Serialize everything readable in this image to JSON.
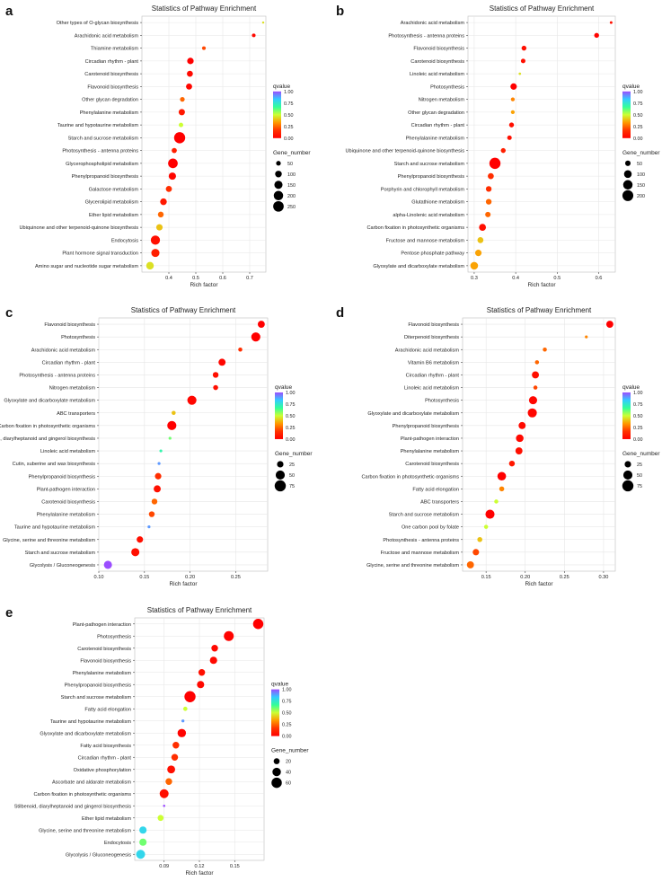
{
  "colors": {
    "qvalue_scale": [
      "#9b4dff",
      "#33ccff",
      "#33ff99",
      "#ccff33",
      "#ff9900",
      "#ff3300",
      "#ff0000"
    ]
  },
  "chart_data": [
    {
      "panel": "a",
      "type": "scatter",
      "title": "Statistics of Pathway Enrichment",
      "xlabel": "Rich factor",
      "xlim": [
        0.3,
        0.76
      ],
      "xticks": [
        0.4,
        0.5,
        0.6,
        0.7
      ],
      "xtick_labels": [
        "0.4",
        "0.5",
        "0.6",
        "0.7"
      ],
      "categories": [
        "Other types of O-glycan biosynthesis",
        "Arachidonic acid metabolism",
        "Thiamine metabolism",
        "Circadian rhythm - plant",
        "Carotenoid biosynthesis",
        "Flavonoid biosynthesis",
        "Other glycan degradation",
        "Phenylalanine metabolism",
        "Taurine and hypotaurine metabolism",
        "Starch and sucrose metabolism",
        "Photosynthesis - antenna proteins",
        "Glycerophospholipid metabolism",
        "Phenylpropanoid biosynthesis",
        "Galactose metabolism",
        "Glycerolipid metabolism",
        "Ether lipid metabolism",
        "Ubiquinone and other terpenoid-quinone biosynthesis",
        "Endocytosis",
        "Plant hormone signal transduction",
        "Amino sugar and nucleotide sugar metabolism"
      ],
      "x": [
        0.75,
        0.715,
        0.53,
        0.48,
        0.478,
        0.475,
        0.45,
        0.448,
        0.445,
        0.44,
        0.42,
        0.415,
        0.413,
        0.4,
        0.38,
        0.37,
        0.365,
        0.35,
        0.35,
        0.33
      ],
      "gene_number": [
        8,
        30,
        30,
        95,
        80,
        85,
        50,
        90,
        45,
        280,
        60,
        210,
        120,
        85,
        100,
        75,
        90,
        190,
        150,
        130
      ],
      "qvalue": [
        0.45,
        0.03,
        0.2,
        0.0,
        0.03,
        0.02,
        0.25,
        0.08,
        0.5,
        0.0,
        0.1,
        0.0,
        0.02,
        0.15,
        0.08,
        0.25,
        0.4,
        0.05,
        0.1,
        0.45
      ],
      "qvalue_legend": {
        "title": "qvalue",
        "ticks": [
          "1.00",
          "0.75",
          "0.50",
          "0.25",
          "0.00"
        ]
      },
      "size_legend": {
        "title": "Gene_number",
        "values": [
          50,
          100,
          150,
          200,
          250
        ],
        "labels": [
          "50",
          "100",
          "150",
          "200",
          "250"
        ],
        "max": 280
      }
    },
    {
      "panel": "b",
      "type": "scatter",
      "title": "Statistics of Pathway Enrichment",
      "xlabel": "Rich factor",
      "xlim": [
        0.285,
        0.64
      ],
      "xticks": [
        0.3,
        0.4,
        0.5,
        0.6
      ],
      "xtick_labels": [
        "0.3",
        "0.4",
        "0.5",
        "0.6"
      ],
      "categories": [
        "Arachidonic acid metabolism",
        "Photosynthesis - antenna proteins",
        "Flavonoid biosynthesis",
        "Carotenoid biosynthesis",
        "Linoleic acid metabolism",
        "Photosynthesis",
        "Nitrogen metabolism",
        "Other glycan degradation",
        "Circadian rhythm - plant",
        "Phenylalanine metabolism",
        "Ubiquinone and other terpenoid-quinone biosynthesis",
        "Starch and sucrose metabolism",
        "Phenylpropanoid biosynthesis",
        "Porphyrin and chlorophyll metabolism",
        "Glutathione metabolism",
        "alpha-Linolenic acid metabolism",
        "Carbon fixation in photosynthetic organisms",
        "Fructose and mannose metabolism",
        "Pentose phosphate pathway",
        "Glyoxylate and dicarboxylate metabolism"
      ],
      "x": [
        0.63,
        0.595,
        0.42,
        0.418,
        0.41,
        0.395,
        0.393,
        0.393,
        0.39,
        0.385,
        0.37,
        0.35,
        0.34,
        0.335,
        0.335,
        0.333,
        0.32,
        0.315,
        0.31,
        0.3
      ],
      "gene_number": [
        12,
        40,
        40,
        35,
        10,
        70,
        25,
        25,
        40,
        35,
        40,
        210,
        60,
        55,
        55,
        50,
        80,
        60,
        70,
        100
      ],
      "qvalue": [
        0.05,
        0.01,
        0.05,
        0.05,
        0.45,
        0.0,
        0.3,
        0.35,
        0.05,
        0.05,
        0.1,
        0.0,
        0.15,
        0.15,
        0.25,
        0.25,
        0.05,
        0.4,
        0.35,
        0.35
      ],
      "qvalue_legend": {
        "title": "qvalue",
        "ticks": [
          "1.00",
          "0.75",
          "0.50",
          "0.25",
          "0.00"
        ]
      },
      "size_legend": {
        "title": "Gene_number",
        "values": [
          50,
          100,
          150,
          200
        ],
        "labels": [
          "50",
          "100",
          "150",
          "200"
        ],
        "max": 210
      }
    },
    {
      "panel": "c",
      "type": "scatter",
      "title": "Statistics of Pathway Enrichment",
      "xlabel": "Rich factor",
      "xlim": [
        0.1,
        0.285
      ],
      "xticks": [
        0.1,
        0.15,
        0.2,
        0.25
      ],
      "xtick_labels": [
        "0.10",
        "0.15",
        "0.20",
        "0.25"
      ],
      "categories": [
        "Flavonoid biosynthesis",
        "Photosynthesis",
        "Arachidonic acid metabolism",
        "Circadian rhythm - plant",
        "Photosynthesis - antenna proteins",
        "Nitrogen metabolism",
        "Glyoxylate and dicarboxylate metabolism",
        "ABC transporters",
        "Carbon fixation in photosynthetic organisms",
        "Stilbenoid, diarylheptanoid and gingerol biosynthesis",
        "Linoleic acid metabolism",
        "Cutin, suberine and wax biosynthesis",
        "Phenylpropanoid biosynthesis",
        "Plant-pathogen interaction",
        "Carotenoid biosynthesis",
        "Phenylalanine metabolism",
        "Taurine and hypotaurine metabolism",
        "Glycine, serine and threonine metabolism",
        "Starch and sucrose metabolism",
        "Glycolysis / Gluconeogenesis"
      ],
      "x": [
        0.278,
        0.272,
        0.255,
        0.235,
        0.228,
        0.228,
        0.202,
        0.182,
        0.18,
        0.178,
        0.168,
        0.166,
        0.165,
        0.164,
        0.161,
        0.158,
        0.155,
        0.145,
        0.14,
        0.11
      ],
      "gene_number": [
        30,
        50,
        10,
        30,
        20,
        15,
        50,
        10,
        50,
        5,
        5,
        5,
        25,
        30,
        20,
        20,
        5,
        25,
        40,
        40
      ],
      "qvalue": [
        0.0,
        0.0,
        0.15,
        0.02,
        0.05,
        0.05,
        0.02,
        0.4,
        0.0,
        0.6,
        0.7,
        0.9,
        0.15,
        0.05,
        0.25,
        0.2,
        0.9,
        0.05,
        0.05,
        1.0
      ],
      "qvalue_legend": {
        "title": "qvalue",
        "ticks": [
          "1.00",
          "0.75",
          "0.50",
          "0.25",
          "0.00"
        ]
      },
      "size_legend": {
        "title": "Gene_number",
        "values": [
          25,
          50,
          75
        ],
        "labels": [
          "25",
          "50",
          "75"
        ],
        "max": 75
      }
    },
    {
      "panel": "d",
      "type": "scatter",
      "title": "Statistics of Pathway Enrichment",
      "xlabel": "Rich factor",
      "xlim": [
        0.12,
        0.315
      ],
      "xticks": [
        0.15,
        0.2,
        0.25,
        0.3
      ],
      "xtick_labels": [
        "0.15",
        "0.20",
        "0.25",
        "0.30"
      ],
      "categories": [
        "Flavonoid biosynthesis",
        "Diterpenoid biosynthesis",
        "Arachidonic acid metabolism",
        "Vitamin B6 metabolism",
        "Circadian rhythm - plant",
        "Linoleic acid metabolism",
        "Photosynthesis",
        "Glyoxylate and dicarboxylate metabolism",
        "Phenylpropanoid biosynthesis",
        "Plant-pathogen interaction",
        "Phenylalanine metabolism",
        "Carotenoid biosynthesis",
        "Carbon fixation in photosynthetic organisms",
        "Fatty acid elongation",
        "ABC transporters",
        "Starch and sucrose metabolism",
        "One carbon pool by folate",
        "Photosynthesis - antenna proteins",
        "Fructose and mannose metabolism",
        "Glycine, serine and threonine metabolism"
      ],
      "x": [
        0.308,
        0.278,
        0.225,
        0.215,
        0.213,
        0.213,
        0.21,
        0.209,
        0.196,
        0.193,
        0.192,
        0.183,
        0.17,
        0.17,
        0.163,
        0.155,
        0.15,
        0.142,
        0.137,
        0.13
      ],
      "gene_number": [
        30,
        5,
        10,
        10,
        30,
        10,
        40,
        50,
        30,
        35,
        30,
        20,
        45,
        15,
        10,
        50,
        10,
        15,
        25,
        30
      ],
      "qvalue": [
        0.0,
        0.3,
        0.25,
        0.25,
        0.05,
        0.2,
        0.02,
        0.02,
        0.03,
        0.03,
        0.05,
        0.08,
        0.0,
        0.3,
        0.5,
        0.0,
        0.5,
        0.4,
        0.2,
        0.25
      ],
      "qvalue_legend": {
        "title": "qvalue",
        "ticks": [
          "1.00",
          "0.75",
          "0.50",
          "0.25",
          "0.00"
        ]
      },
      "size_legend": {
        "title": "Gene_number",
        "values": [
          25,
          50,
          75
        ],
        "labels": [
          "25",
          "50",
          "75"
        ],
        "max": 75
      }
    },
    {
      "panel": "e",
      "type": "scatter",
      "title": "Statistics of Pathway Enrichment",
      "xlabel": "Rich factor",
      "xlim": [
        0.065,
        0.175
      ],
      "xticks": [
        0.09,
        0.12,
        0.15
      ],
      "xtick_labels": [
        "0.09",
        "0.12",
        "0.15"
      ],
      "categories": [
        "Plant-pathogen interaction",
        "Photosynthesis",
        "Carotenoid biosynthesis",
        "Flavonoid biosynthesis",
        "Phenylalanine metabolism",
        "Phenylpropanoid biosynthesis",
        "Starch and sucrose metabolism",
        "Fatty acid elongation",
        "Taurine and hypotaurine metabolism",
        "Glyoxylate and dicarboxylate metabolism",
        "Fatty acid biosynthesis",
        "Circadian rhythm - plant",
        "Oxidative phosphorylation",
        "Ascorbate and aldarate metabolism",
        "Carbon fixation in photosynthetic organisms",
        "Stilbenoid, diarylheptanoid and gingerol biosynthesis",
        "Ether lipid metabolism",
        "Glycine, serine and threonine metabolism",
        "Endocytosis",
        "Glycolysis / Gluconeogenesis"
      ],
      "x": [
        0.17,
        0.145,
        0.133,
        0.132,
        0.122,
        0.121,
        0.112,
        0.108,
        0.106,
        0.105,
        0.1,
        0.099,
        0.096,
        0.094,
        0.09,
        0.09,
        0.087,
        0.072,
        0.072,
        0.07
      ],
      "gene_number": [
        60,
        55,
        25,
        30,
        25,
        30,
        70,
        10,
        5,
        40,
        25,
        25,
        35,
        25,
        45,
        3,
        20,
        30,
        30,
        45
      ],
      "qvalue": [
        0.0,
        0.01,
        0.03,
        0.03,
        0.05,
        0.03,
        0.0,
        0.5,
        0.9,
        0.01,
        0.15,
        0.15,
        0.05,
        0.25,
        0.05,
        1.0,
        0.5,
        0.8,
        0.6,
        0.8
      ],
      "qvalue_legend": {
        "title": "qvalue",
        "ticks": [
          "1.00",
          "0.75",
          "0.50",
          "0.25",
          "0.00"
        ]
      },
      "size_legend": {
        "title": "Gene_number",
        "values": [
          20,
          40,
          60
        ],
        "labels": [
          "20",
          "40",
          "60"
        ],
        "max": 70
      }
    }
  ]
}
